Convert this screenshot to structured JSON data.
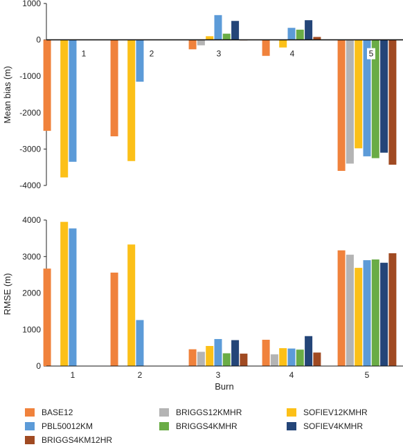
{
  "chart_data": [
    {
      "type": "bar",
      "ylabel": "Mean bias (m)",
      "xlabel": "",
      "ylim": [
        -4000,
        1000
      ],
      "yticks": [
        1000,
        0,
        -1000,
        -2000,
        -3000,
        -4000
      ],
      "categories": [
        "1",
        "2",
        "3",
        "4",
        "5"
      ],
      "category_labels_inside": [
        "1",
        "2",
        "3",
        "4",
        "5"
      ],
      "series": [
        {
          "name": "BASE12",
          "values": [
            -2500,
            -2650,
            -260,
            -440,
            -3600
          ]
        },
        {
          "name": "BRIGGS12KMHR",
          "values": [
            null,
            null,
            -150,
            null,
            -3400
          ]
        },
        {
          "name": "SOFIEV12KMHR",
          "values": [
            -3780,
            -3330,
            100,
            -210,
            -2980
          ]
        },
        {
          "name": "PBL50012KM",
          "values": [
            -3350,
            -1150,
            680,
            330,
            -3200
          ]
        },
        {
          "name": "BRIGGS4KMHR",
          "values": [
            null,
            null,
            170,
            280,
            -3250
          ]
        },
        {
          "name": "SOFIEV4KMHR",
          "values": [
            null,
            null,
            520,
            540,
            -3100
          ]
        },
        {
          "name": "BRIGGS4KM12HR",
          "values": [
            null,
            null,
            0,
            80,
            -3430
          ]
        }
      ]
    },
    {
      "type": "bar",
      "ylabel": "RMSE (m)",
      "xlabel": "Burn",
      "ylim": [
        0,
        4000
      ],
      "yticks": [
        4000,
        3000,
        2000,
        1000,
        0
      ],
      "categories": [
        "1",
        "2",
        "3",
        "4",
        "5"
      ],
      "series": [
        {
          "name": "BASE12",
          "values": [
            2670,
            2560,
            460,
            720,
            3170
          ]
        },
        {
          "name": "BRIGGS12KMHR",
          "values": [
            null,
            null,
            390,
            320,
            3050
          ]
        },
        {
          "name": "SOFIEV12KMHR",
          "values": [
            3950,
            3330,
            550,
            490,
            2690
          ]
        },
        {
          "name": "PBL50012KM",
          "values": [
            3770,
            1260,
            740,
            480,
            2900
          ]
        },
        {
          "name": "BRIGGS4KMHR",
          "values": [
            null,
            null,
            350,
            450,
            2920
          ]
        },
        {
          "name": "SOFIEV4KMHR",
          "values": [
            null,
            null,
            710,
            820,
            2830
          ]
        },
        {
          "name": "BRIGGS4KM12HR",
          "values": [
            null,
            null,
            340,
            370,
            3090
          ]
        }
      ]
    }
  ],
  "colors": {
    "BASE12": "#f0823c",
    "BRIGGS12KMHR": "#b4b4b4",
    "SOFIEV12KMHR": "#fcc018",
    "PBL50012KM": "#5c9bd8",
    "BRIGGS4KMHR": "#6aac46",
    "SOFIEV4KMHR": "#244578",
    "BRIGGS4KM12HR": "#a04a22"
  },
  "legend": {
    "items": [
      {
        "label": "BASE12",
        "color": "#f0823c"
      },
      {
        "label": "BRIGGS12KMHR",
        "color": "#b4b4b4"
      },
      {
        "label": "SOFIEV12KMHR",
        "color": "#fcc018"
      },
      {
        "label": "PBL50012KM",
        "color": "#5c9bd8"
      },
      {
        "label": "BRIGGS4KMHR",
        "color": "#6aac46"
      },
      {
        "label": "SOFIEV4KMHR",
        "color": "#244578"
      },
      {
        "label": "BRIGGS4KM12HR",
        "color": "#a04a22"
      }
    ]
  }
}
